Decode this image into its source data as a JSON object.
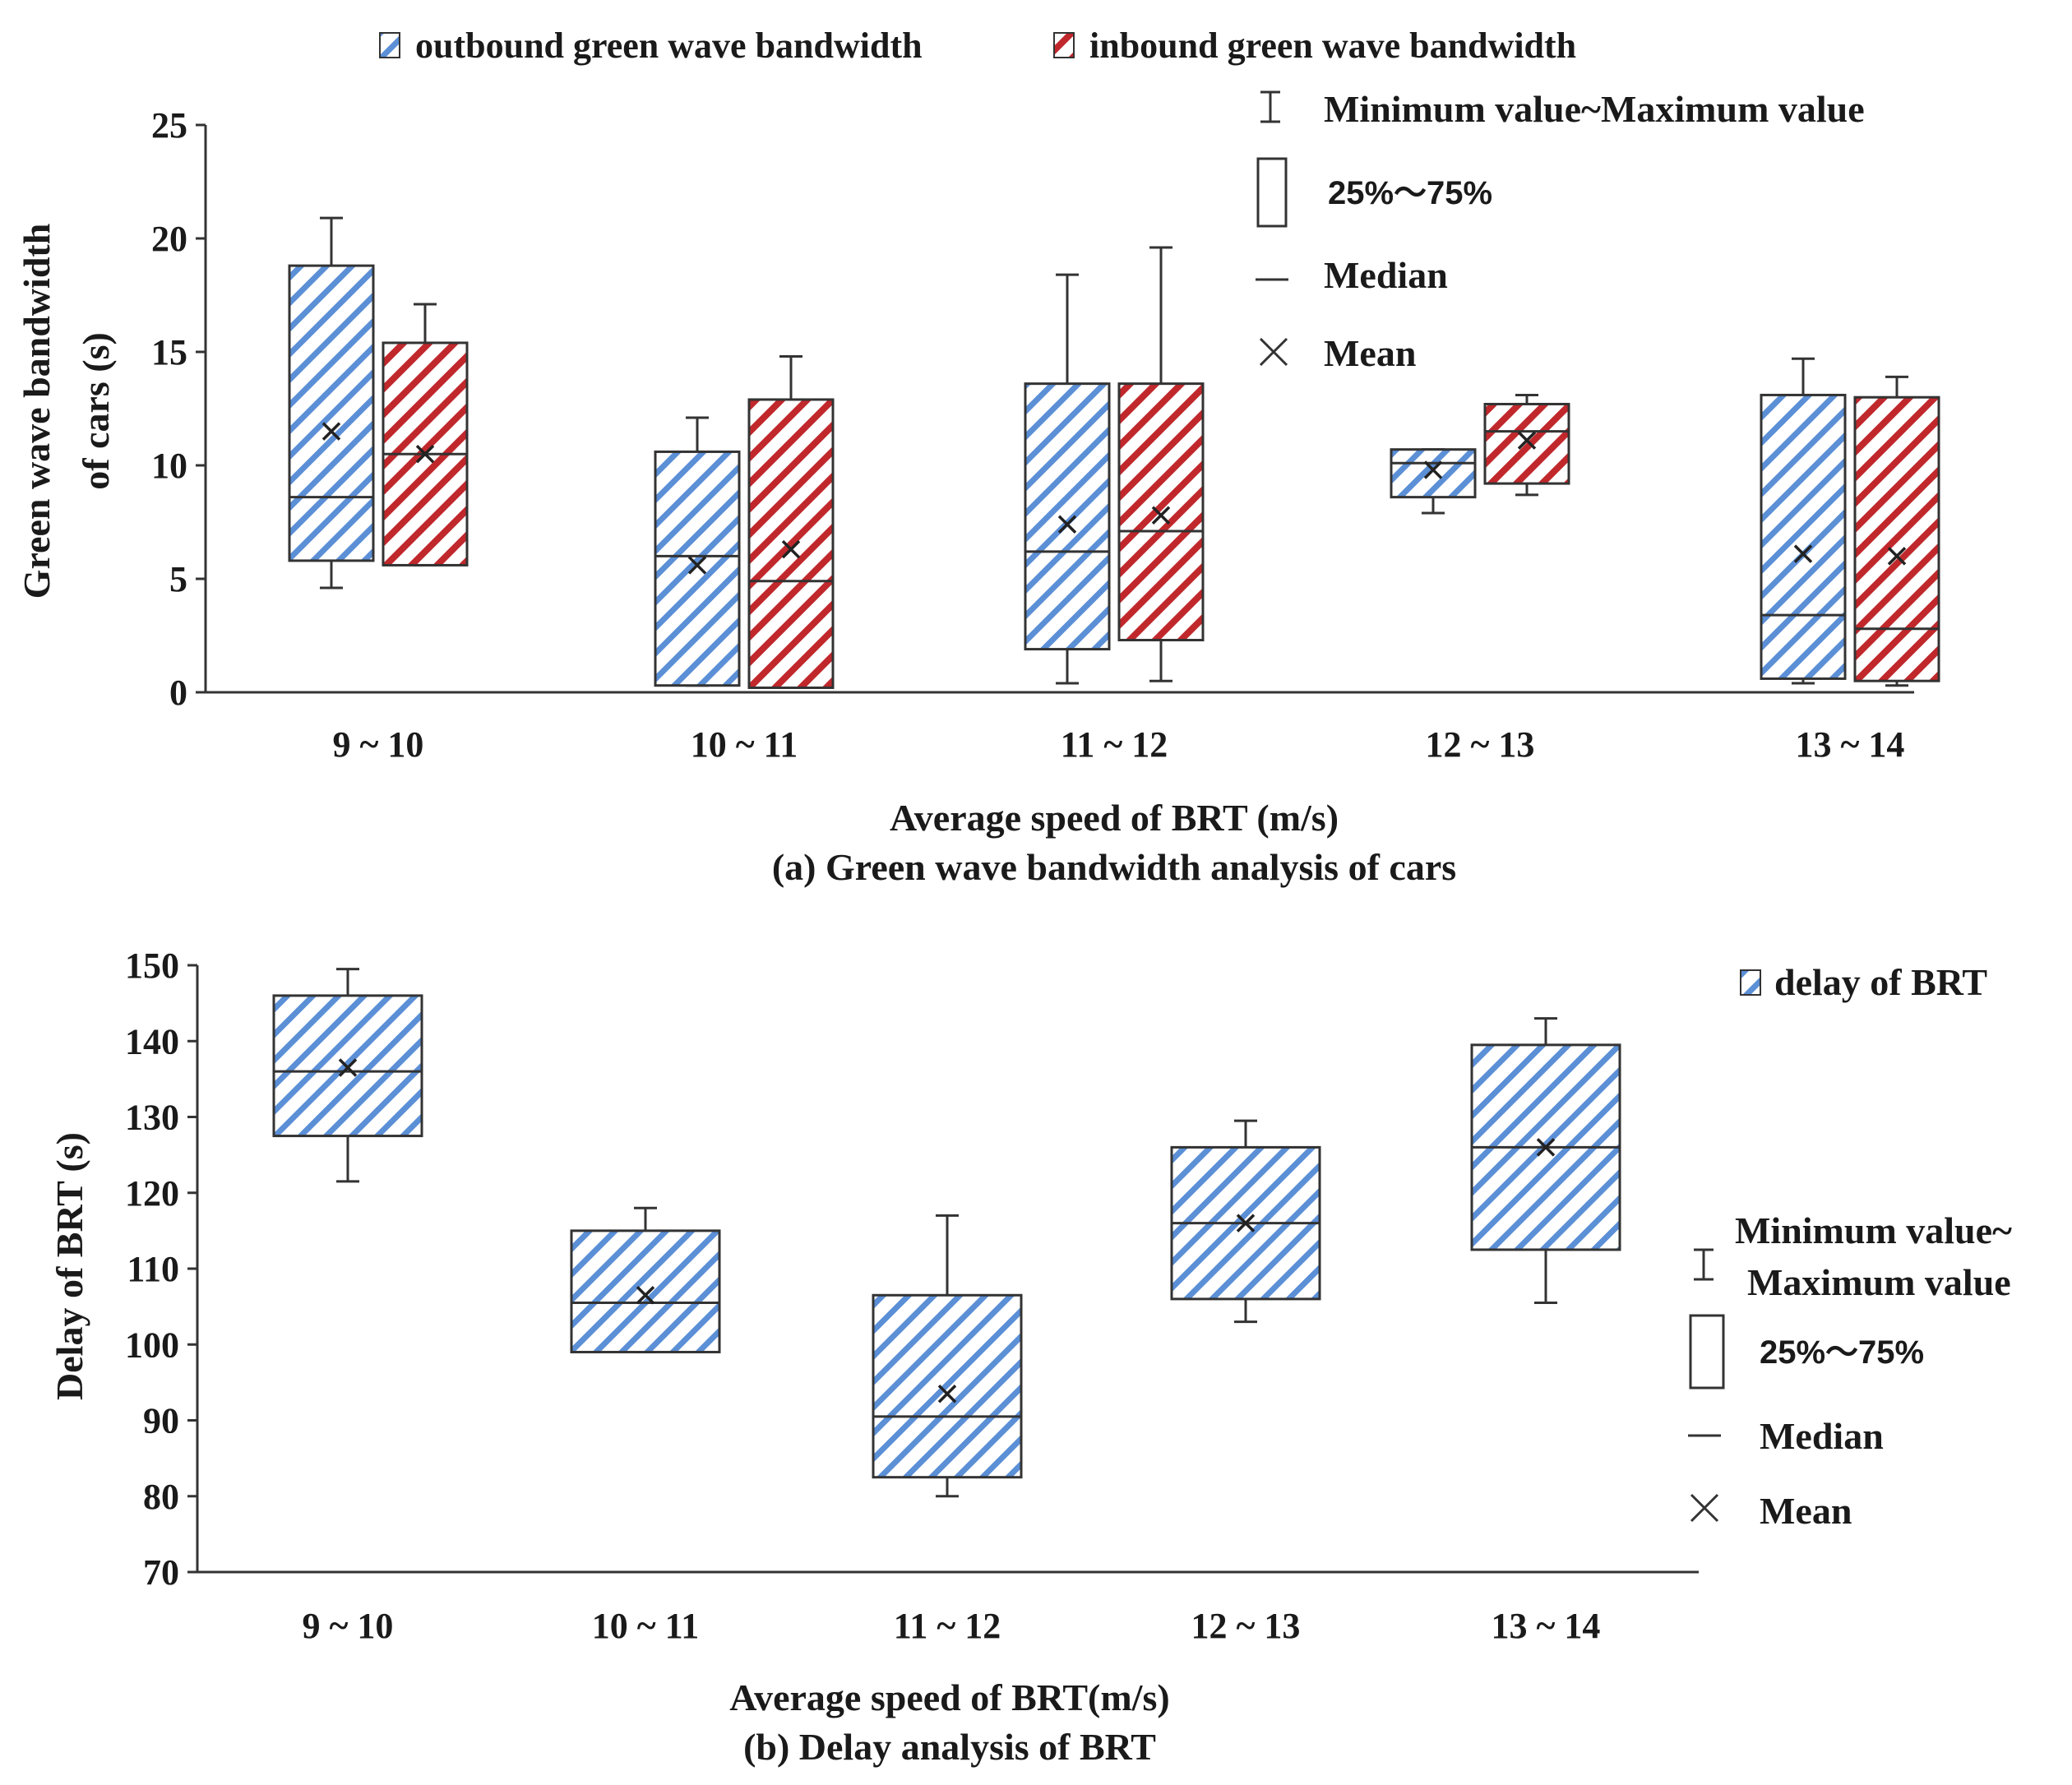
{
  "colors": {
    "outbound": "#5b8fd6",
    "inbound": "#c0282c",
    "delay": "#5b8fd6",
    "ink": "#333333"
  },
  "chart_data": [
    {
      "type": "box",
      "id": "a",
      "caption": "(a) Green wave bandwidth analysis of cars",
      "xlabel": "Average speed of BRT (m/s)",
      "ylabel": [
        "Green wave bandwidth",
        "of cars (s)"
      ],
      "ylim": [
        0,
        25
      ],
      "yticks": [
        0,
        5,
        10,
        15,
        20,
        25
      ],
      "categories": [
        "9 ~ 10",
        "10 ~ 11",
        "11 ~ 12",
        "12 ~ 13",
        "13 ~ 14"
      ],
      "series": [
        {
          "name": "outbound green wave bandwidth",
          "boxes": [
            {
              "min": 4.6,
              "q1": 5.8,
              "median": 8.6,
              "q3": 18.8,
              "max": 20.9,
              "mean": 11.5
            },
            {
              "min": 0.3,
              "q1": 0.3,
              "median": 6.0,
              "q3": 10.6,
              "max": 12.1,
              "mean": 5.6
            },
            {
              "min": 0.4,
              "q1": 1.9,
              "median": 6.2,
              "q3": 13.6,
              "max": 18.4,
              "mean": 7.4
            },
            {
              "min": 7.9,
              "q1": 8.6,
              "median": 10.1,
              "q3": 10.7,
              "max": 10.7,
              "mean": 9.8
            },
            {
              "min": 0.4,
              "q1": 0.6,
              "median": 3.4,
              "q3": 13.1,
              "max": 14.7,
              "mean": 6.1
            }
          ]
        },
        {
          "name": "inbound green wave bandwidth",
          "boxes": [
            {
              "min": 5.6,
              "q1": 5.6,
              "median": 10.5,
              "q3": 15.4,
              "max": 17.1,
              "mean": 10.5
            },
            {
              "min": 0.2,
              "q1": 0.2,
              "median": 4.9,
              "q3": 12.9,
              "max": 14.8,
              "mean": 6.3
            },
            {
              "min": 0.5,
              "q1": 2.3,
              "median": 7.1,
              "q3": 13.6,
              "max": 19.6,
              "mean": 7.8
            },
            {
              "min": 8.7,
              "q1": 9.2,
              "median": 11.5,
              "q3": 12.7,
              "max": 13.1,
              "mean": 11.1
            },
            {
              "min": 0.3,
              "q1": 0.5,
              "median": 2.8,
              "q3": 13.0,
              "max": 13.9,
              "mean": 6.0
            }
          ]
        }
      ],
      "legend": {
        "series": [
          "outbound green wave bandwidth",
          "inbound green wave bandwidth"
        ],
        "minmax": "Minimum value~Maximum value",
        "iqr": "25%～75%",
        "median": "Median",
        "mean": "Mean"
      }
    },
    {
      "type": "box",
      "id": "b",
      "caption": "(b)  Delay analysis of BRT",
      "xlabel": "Average speed of BRT(m/s)",
      "ylabel": [
        "Delay of BRT (s)"
      ],
      "ylim": [
        70,
        150
      ],
      "yticks": [
        70,
        80,
        90,
        100,
        110,
        120,
        130,
        140,
        150
      ],
      "categories": [
        "9 ~ 10",
        "10 ~ 11",
        "11 ~ 12",
        "12 ~ 13",
        "13 ~ 14"
      ],
      "series": [
        {
          "name": "delay of BRT",
          "boxes": [
            {
              "min": 121.5,
              "q1": 127.5,
              "median": 136.0,
              "q3": 146.0,
              "max": 149.5,
              "mean": 136.5
            },
            {
              "min": 99.0,
              "q1": 99.0,
              "median": 105.5,
              "q3": 115.0,
              "max": 118.0,
              "mean": 106.5
            },
            {
              "min": 80.0,
              "q1": 82.5,
              "median": 90.5,
              "q3": 106.5,
              "max": 117.0,
              "mean": 93.5
            },
            {
              "min": 103.0,
              "q1": 106.0,
              "median": 116.0,
              "q3": 126.0,
              "max": 129.5,
              "mean": 116.0
            },
            {
              "min": 105.5,
              "q1": 112.5,
              "median": 126.0,
              "q3": 139.5,
              "max": 143.0,
              "mean": 126.0
            }
          ]
        }
      ],
      "legend": {
        "series": [
          "delay of BRT"
        ],
        "minmax_line1": "Minimum value~",
        "minmax_line2": "Maximum value",
        "iqr": "25%～75%",
        "median": "Median",
        "mean": "Mean"
      }
    }
  ]
}
